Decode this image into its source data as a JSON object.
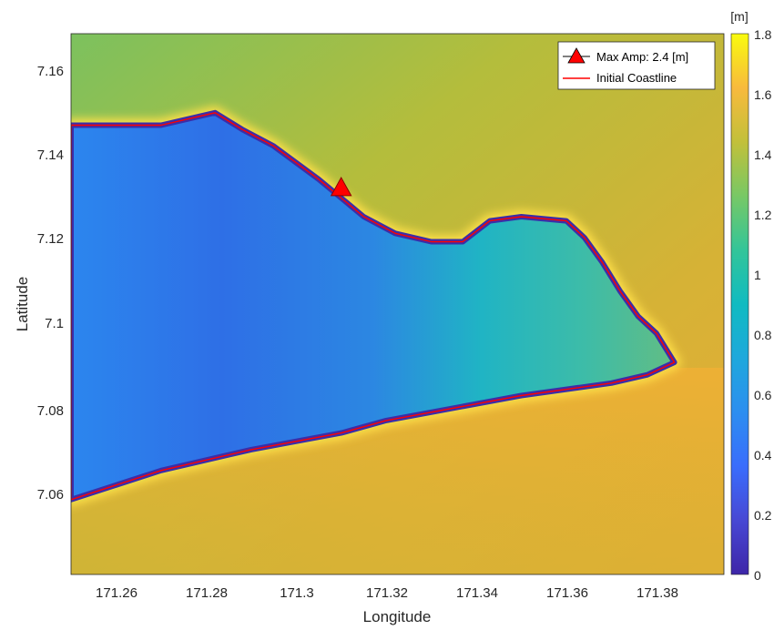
{
  "chart_data": {
    "type": "heatmap",
    "title": "",
    "xlabel": "Longitude",
    "ylabel": "Latitude",
    "xlim": [
      171.25,
      171.395
    ],
    "ylim": [
      7.04,
      7.17
    ],
    "x_ticks": [
      "171.26",
      "171.28",
      "171.3",
      "171.32",
      "171.34",
      "171.36",
      "171.38"
    ],
    "y_ticks": [
      "7.06",
      "7.08",
      "7.1",
      "7.12",
      "7.14",
      "7.16"
    ],
    "colorbar": {
      "unit_label": "[m]",
      "range": [
        0,
        1.8
      ],
      "ticks": [
        "0",
        "0.2",
        "0.4",
        "0.6",
        "0.8",
        "1",
        "1.2",
        "1.4",
        "1.6",
        "1.8"
      ],
      "colormap": "parula"
    },
    "legend": {
      "position": "top-right",
      "entries": [
        {
          "label": "Max Amp: 2.4 [m]",
          "marker": "triangle",
          "color": "#ff0000"
        },
        {
          "label": "Initial Coastline",
          "marker": "line",
          "color": "#ff0000"
        }
      ]
    },
    "max_amp_point": {
      "lon": 171.31,
      "lat": 7.133,
      "value": 2.4
    },
    "coastline": [
      {
        "lon": 171.25,
        "lat": 7.058
      },
      {
        "lon": 171.27,
        "lat": 7.065
      },
      {
        "lon": 171.29,
        "lat": 7.07
      },
      {
        "lon": 171.31,
        "lat": 7.074
      },
      {
        "lon": 171.32,
        "lat": 7.077
      },
      {
        "lon": 171.33,
        "lat": 7.079
      },
      {
        "lon": 171.35,
        "lat": 7.083
      },
      {
        "lon": 171.37,
        "lat": 7.086
      },
      {
        "lon": 171.378,
        "lat": 7.088
      },
      {
        "lon": 171.384,
        "lat": 7.091
      },
      {
        "lon": 171.38,
        "lat": 7.098
      },
      {
        "lon": 171.376,
        "lat": 7.102
      },
      {
        "lon": 171.372,
        "lat": 7.108
      },
      {
        "lon": 171.368,
        "lat": 7.115
      },
      {
        "lon": 171.364,
        "lat": 7.121
      },
      {
        "lon": 171.36,
        "lat": 7.125
      },
      {
        "lon": 171.35,
        "lat": 7.126
      },
      {
        "lon": 171.343,
        "lat": 7.125
      },
      {
        "lon": 171.337,
        "lat": 7.12
      },
      {
        "lon": 171.33,
        "lat": 7.12
      },
      {
        "lon": 171.322,
        "lat": 7.122
      },
      {
        "lon": 171.315,
        "lat": 7.126
      },
      {
        "lon": 171.305,
        "lat": 7.135
      },
      {
        "lon": 171.295,
        "lat": 7.143
      },
      {
        "lon": 171.288,
        "lat": 7.147
      },
      {
        "lon": 171.282,
        "lat": 7.151
      },
      {
        "lon": 171.27,
        "lat": 7.148
      },
      {
        "lon": 171.26,
        "lat": 7.148
      },
      {
        "lon": 171.25,
        "lat": 7.148
      }
    ]
  },
  "colors": {
    "lagoon": "#2e7fe8",
    "ocean": "#c8b436",
    "land": "#3b2ea8",
    "coast_glow": "#ffe04a",
    "coastline": "#ff0000"
  }
}
